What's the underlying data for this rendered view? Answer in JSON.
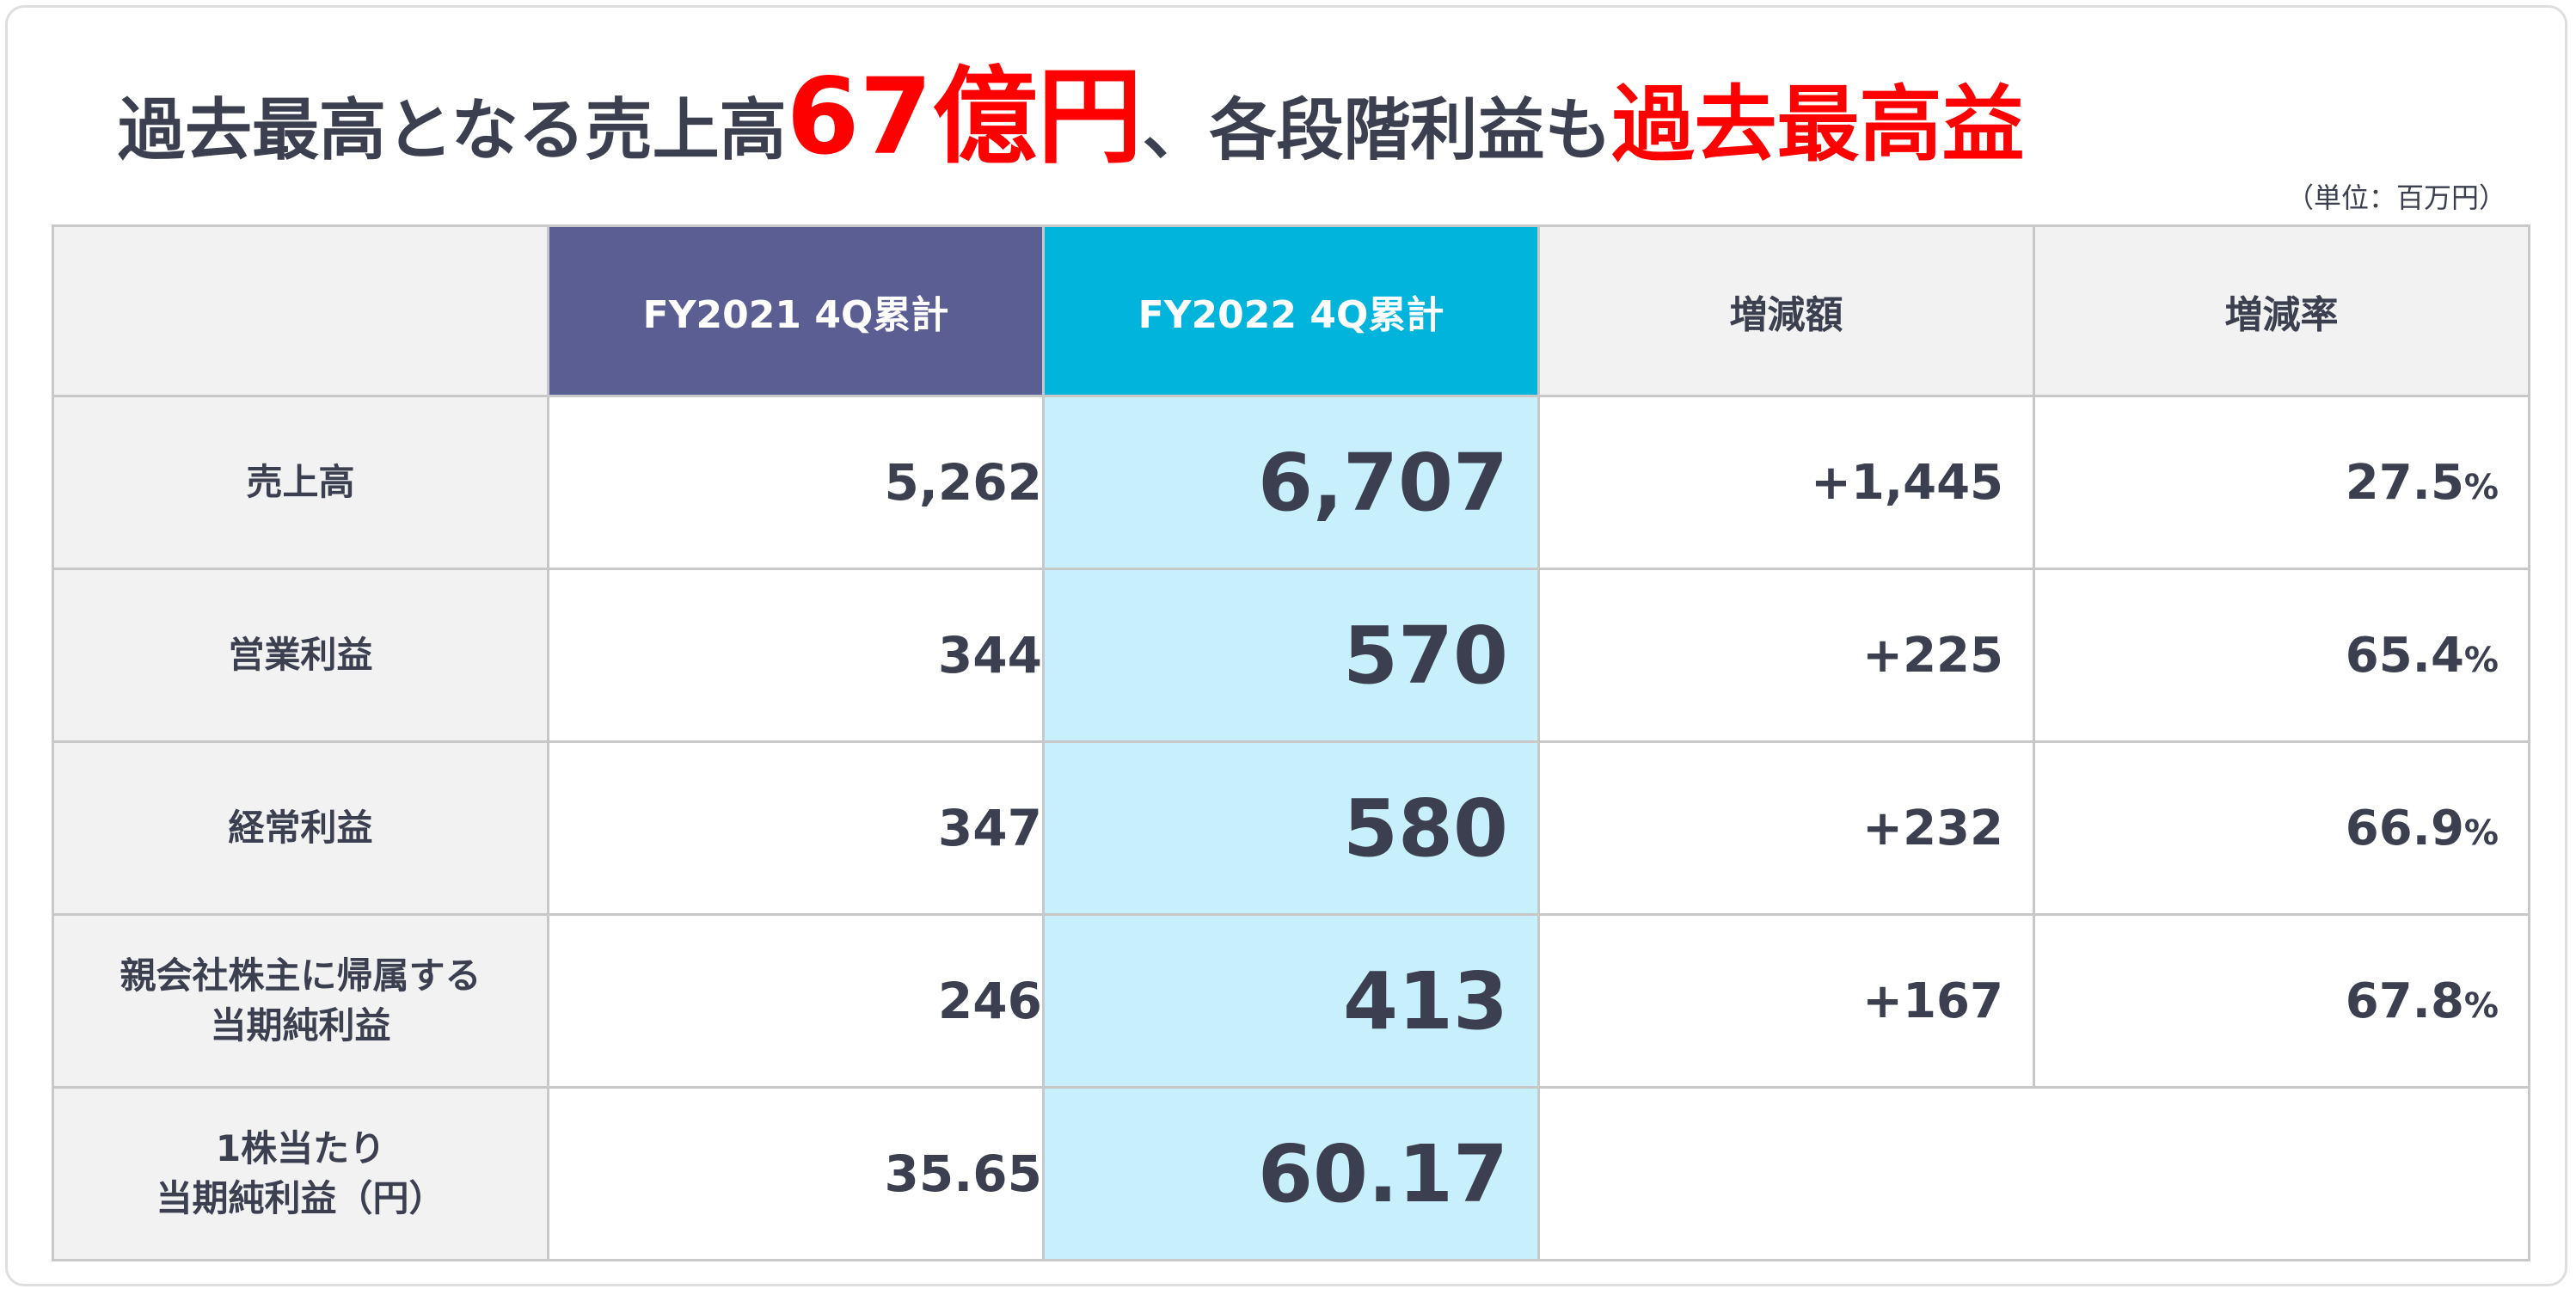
{
  "title": {
    "part1": "過去最高となる売上高",
    "highlight_amount": "67億円",
    "part2": "、各段階利益も",
    "highlight_end": "過去最高益"
  },
  "unit_note": "（単位：百万円）",
  "table": {
    "headers": [
      "",
      "FY2021 4Q累計",
      "FY2022 4Q累計",
      "増減額",
      "増減率"
    ],
    "rows": [
      {
        "label": [
          "売上高"
        ],
        "fy2021": "5,262",
        "fy2022": "6,707",
        "diff": "+1,445",
        "rate": "27.5",
        "rate_unit": "%"
      },
      {
        "label": [
          "営業利益"
        ],
        "fy2021": "344",
        "fy2022": "570",
        "diff": "+225",
        "rate": "65.4",
        "rate_unit": "%"
      },
      {
        "label": [
          "経常利益"
        ],
        "fy2021": "347",
        "fy2022": "580",
        "diff": "+232",
        "rate": "66.9",
        "rate_unit": "%"
      },
      {
        "label": [
          "親会社株主に帰属する",
          "当期純利益"
        ],
        "fy2021": "246",
        "fy2022": "413",
        "diff": "+167",
        "rate": "67.8",
        "rate_unit": "%"
      },
      {
        "label": [
          "1株当たり",
          "当期純利益（円）"
        ],
        "fy2021": "35.65",
        "fy2022": "60.17"
      }
    ]
  },
  "colors": {
    "fy2021_header": "#5a5e93",
    "fy2022_header": "#00b4dc",
    "fy2022_cells": "#c8f0fc",
    "highlight_text": "#ff0000",
    "label_bg": "#f2f2f2"
  }
}
